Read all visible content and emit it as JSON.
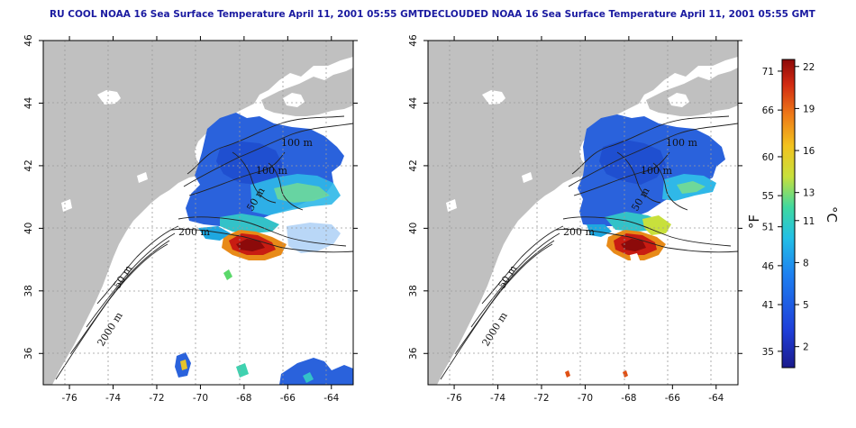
{
  "maps": [
    {
      "title": "RU COOL NOAA 16 Sea Surface Temperature April 11, 2001 05:55 GMT",
      "variant": "raw"
    },
    {
      "title": "DECLOUDED NOAA 16 Sea Surface Temperature April 11, 2001 05:55 GMT",
      "variant": "declouded"
    }
  ],
  "axes": {
    "lon_ticks": [
      "-76",
      "-74",
      "-72",
      "-70",
      "-68",
      "-66",
      "-64"
    ],
    "lat_ticks": [
      "36",
      "38",
      "40",
      "42",
      "44",
      "46"
    ],
    "lon_range": [
      -77.2,
      -63.0
    ],
    "lat_range": [
      35.0,
      46.0
    ]
  },
  "contour_labels": [
    "100 m",
    "100 m",
    "50 m",
    "200 m",
    "50 m",
    "2000 m"
  ],
  "colorbar": {
    "fahrenheit_ticks": [
      "71",
      "66",
      "60",
      "55",
      "51",
      "46",
      "41",
      "35"
    ],
    "celsius_ticks": [
      "22",
      "19",
      "16",
      "13",
      "11",
      "8",
      "5",
      "2"
    ],
    "fahrenheit_unit": "°F",
    "celsius_unit": "°C",
    "range_c": [
      0.5,
      22.5
    ]
  },
  "colors": {
    "land": "#c0c0c0",
    "title": "#1a1aa0",
    "grid": "#9a9a9a",
    "cold": "#1a50d8",
    "warm": "#b01010"
  }
}
